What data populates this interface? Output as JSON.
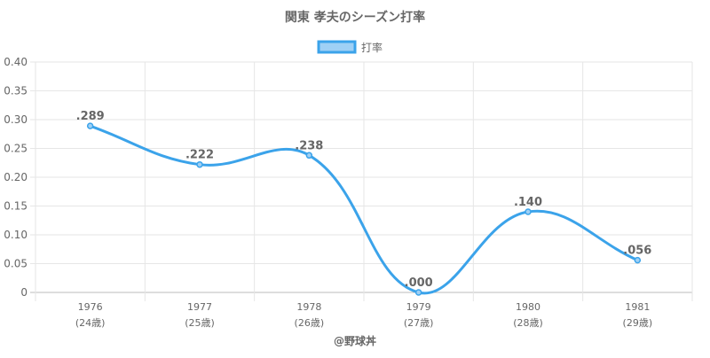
{
  "chart_data": {
    "type": "line",
    "title": "関東 孝夫のシーズン打率",
    "legend": {
      "label": "打率",
      "placement": "top-center"
    },
    "categories": [
      "1976",
      "1977",
      "1978",
      "1979",
      "1980",
      "1981"
    ],
    "sublabels": [
      "(24歳)",
      "(25歳)",
      "(26歳)",
      "(27歳)",
      "(28歳)",
      "(29歳)"
    ],
    "series": [
      {
        "name": "打率",
        "values": [
          0.289,
          0.222,
          0.238,
          0.0,
          0.14,
          0.056
        ]
      }
    ],
    "data_labels": [
      ".289",
      ".222",
      ".238",
      ".000",
      ".140",
      ".056"
    ],
    "y_ticks": [
      "0",
      "0.05",
      "0.10",
      "0.15",
      "0.20",
      "0.25",
      "0.30",
      "0.35",
      "0.40"
    ],
    "ylim": [
      0,
      0.4
    ],
    "grid": true,
    "xlabel": "",
    "ylabel": "",
    "colors": {
      "line": "#3ba3ea",
      "fill": "#9fd0f5",
      "grid": "#e6e6e6",
      "text": "#666666"
    }
  },
  "footer": "@野球丼"
}
